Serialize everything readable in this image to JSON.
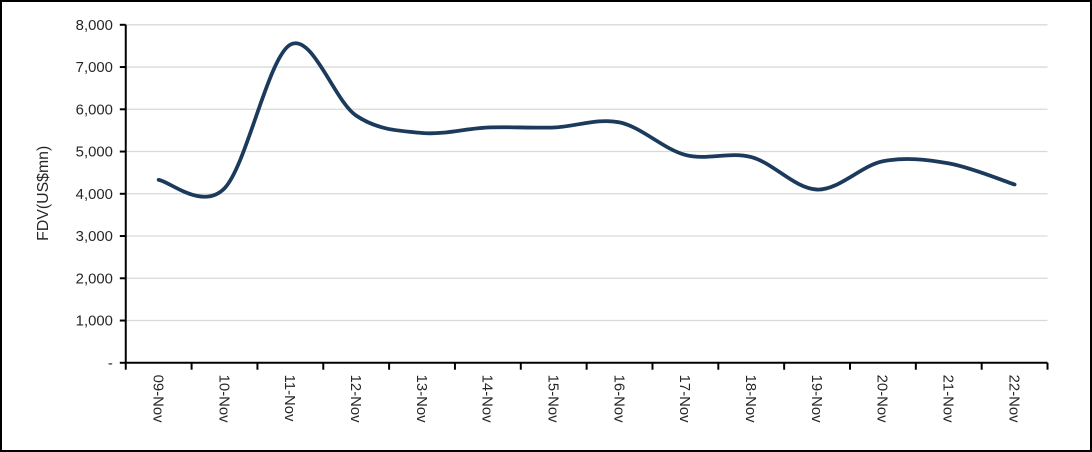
{
  "chart_data": {
    "type": "line",
    "title": "",
    "xlabel": "",
    "ylabel": "FDV(US$mn)",
    "categories": [
      "09-Nov",
      "10-Nov",
      "11-Nov",
      "12-Nov",
      "13-Nov",
      "14-Nov",
      "15-Nov",
      "16-Nov",
      "17-Nov",
      "18-Nov",
      "19-Nov",
      "20-Nov",
      "21-Nov",
      "22-Nov"
    ],
    "values": [
      4330,
      4130,
      7530,
      5850,
      5440,
      5570,
      5570,
      5690,
      4920,
      4870,
      4100,
      4770,
      4720,
      4220
    ],
    "ylim": [
      0,
      8000
    ],
    "ytick_step": 1000,
    "yticks": [
      {
        "value": 0,
        "label": "-"
      },
      {
        "value": 1000,
        "label": "1,000"
      },
      {
        "value": 2000,
        "label": "2,000"
      },
      {
        "value": 3000,
        "label": "3,000"
      },
      {
        "value": 4000,
        "label": "4,000"
      },
      {
        "value": 5000,
        "label": "5,000"
      },
      {
        "value": 6000,
        "label": "6,000"
      },
      {
        "value": 7000,
        "label": "7,000"
      },
      {
        "value": 8000,
        "label": "8,000"
      }
    ],
    "grid": "horizontal",
    "legend_position": "none",
    "smooth": true,
    "x_label_rotation_deg": 90,
    "colors": {
      "line": "#1b3a5c",
      "grid": "#d9d9d9",
      "axis": "#000000",
      "tick_label": "#262626",
      "background": "#ffffff",
      "frame_border": "#000000"
    }
  }
}
